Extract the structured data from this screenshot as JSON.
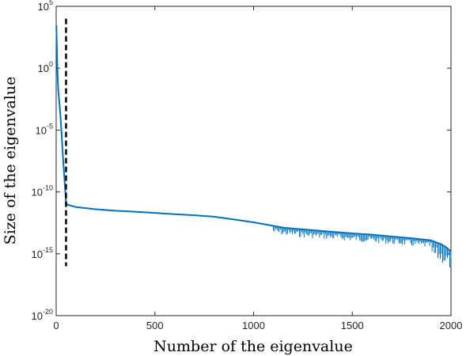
{
  "chart_data": {
    "type": "line",
    "xlabel": "Number of the eigenvalue",
    "ylabel": "Size of the eigenvalue",
    "y_scale": "log",
    "xlim": [
      0,
      2000
    ],
    "ylim": [
      1e-20,
      100000.0
    ],
    "x_ticks": [
      0,
      500,
      1000,
      1500,
      2000
    ],
    "x_tick_labels": [
      "0",
      "500",
      "1000",
      "1500",
      "2000"
    ],
    "y_ticks": [
      -20,
      -15,
      -10,
      -5,
      0,
      5
    ],
    "y_tick_labels": [
      {
        "base": "10",
        "exp": "-20"
      },
      {
        "base": "10",
        "exp": "-15"
      },
      {
        "base": "10",
        "exp": "-10"
      },
      {
        "base": "10",
        "exp": "-5"
      },
      {
        "base": "10",
        "exp": "0"
      },
      {
        "base": "10",
        "exp": "5"
      }
    ],
    "grid": false,
    "series": [
      {
        "color": "#0072BD",
        "style": "solid",
        "points": [
          [
            1,
            3000.0
          ],
          [
            3,
            100.0
          ],
          [
            6,
            1.0
          ],
          [
            10,
            0.02
          ],
          [
            15,
            0.003
          ],
          [
            20,
            0.0003
          ],
          [
            25,
            2e-05
          ],
          [
            30,
            1e-06
          ],
          [
            35,
            5e-08
          ],
          [
            40,
            3e-09
          ],
          [
            45,
            2e-10
          ],
          [
            50,
            1.5e-11
          ],
          [
            55,
            1e-11
          ],
          [
            60,
            9e-12
          ],
          [
            100,
            6e-12
          ],
          [
            200,
            4e-12
          ],
          [
            300,
            3e-12
          ],
          [
            400,
            2.5e-12
          ],
          [
            500,
            2e-12
          ],
          [
            600,
            1.6e-12
          ],
          [
            700,
            1.3e-12
          ],
          [
            800,
            1e-12
          ],
          [
            900,
            6e-13
          ],
          [
            1000,
            3.5e-13
          ],
          [
            1100,
            1.8e-13
          ],
          [
            1150,
            1.3e-13
          ],
          [
            1200,
            1.1e-13
          ],
          [
            1300,
            8e-14
          ],
          [
            1400,
            6e-14
          ],
          [
            1500,
            4.5e-14
          ],
          [
            1600,
            3.5e-14
          ],
          [
            1700,
            2.5e-14
          ],
          [
            1800,
            1.8e-14
          ],
          [
            1900,
            1.2e-14
          ],
          [
            1950,
            6e-15
          ],
          [
            1980,
            3e-15
          ],
          [
            2000,
            1.5e-15
          ]
        ]
      },
      {
        "color": "#000000",
        "style": "dashed",
        "points": [
          [
            50,
            10000.0
          ],
          [
            50,
            1e-16
          ]
        ]
      }
    ]
  }
}
